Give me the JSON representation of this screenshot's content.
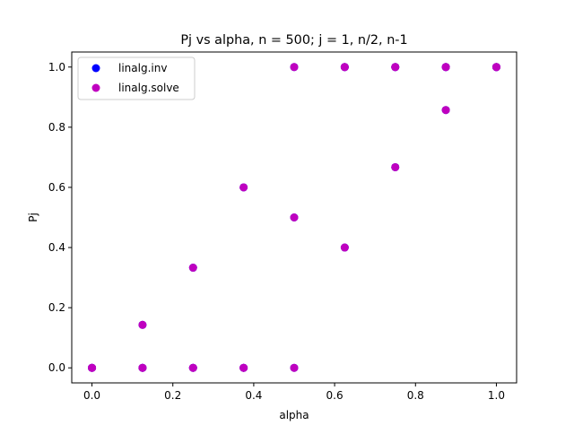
{
  "chart_data": {
    "type": "scatter",
    "title": "Pj vs alpha, n = 500; j = 1, n/2, n-1",
    "xlabel": "alpha",
    "ylabel": "Pj",
    "xlim": [
      -0.05,
      1.05
    ],
    "ylim": [
      -0.05,
      1.05
    ],
    "xticks": [
      0.0,
      0.2,
      0.4,
      0.6,
      0.8,
      1.0
    ],
    "yticks": [
      0.0,
      0.2,
      0.4,
      0.6,
      0.8,
      1.0
    ],
    "xtick_labels": [
      "0.0",
      "0.2",
      "0.4",
      "0.6",
      "0.8",
      "1.0"
    ],
    "ytick_labels": [
      "0.0",
      "0.2",
      "0.4",
      "0.6",
      "0.8",
      "1.0"
    ],
    "grid": false,
    "legend_position": "upper-left",
    "series": [
      {
        "name": "linalg.inv",
        "color": "#0000ff",
        "x": [
          0.0,
          0.0,
          0.0,
          0.125,
          0.125,
          0.125,
          0.25,
          0.25,
          0.25,
          0.375,
          0.375,
          0.375,
          0.5,
          0.5,
          0.5,
          0.625,
          0.625,
          0.625,
          0.75,
          0.75,
          0.75,
          0.875,
          0.875,
          0.875,
          1.0,
          1.0,
          1.0
        ],
        "y": [
          0.0,
          0.0,
          0.0,
          0.0,
          0.143,
          0.0,
          0.0,
          0.333,
          0.0,
          0.0,
          0.6,
          0.0,
          0.0,
          0.5,
          1.0,
          1.0,
          0.4,
          1.0,
          1.0,
          0.667,
          1.0,
          1.0,
          0.857,
          1.0,
          1.0,
          1.0,
          1.0
        ]
      },
      {
        "name": "linalg.solve",
        "color": "#bf00bf",
        "x": [
          0.0,
          0.0,
          0.0,
          0.125,
          0.125,
          0.125,
          0.25,
          0.25,
          0.25,
          0.375,
          0.375,
          0.375,
          0.5,
          0.5,
          0.5,
          0.625,
          0.625,
          0.625,
          0.75,
          0.75,
          0.75,
          0.875,
          0.875,
          0.875,
          1.0,
          1.0,
          1.0
        ],
        "y": [
          0.0,
          0.0,
          0.0,
          0.0,
          0.143,
          0.0,
          0.0,
          0.333,
          0.0,
          0.0,
          0.6,
          0.0,
          0.0,
          0.5,
          1.0,
          1.0,
          0.4,
          1.0,
          1.0,
          0.667,
          1.0,
          1.0,
          0.857,
          1.0,
          1.0,
          1.0,
          1.0
        ]
      }
    ]
  }
}
